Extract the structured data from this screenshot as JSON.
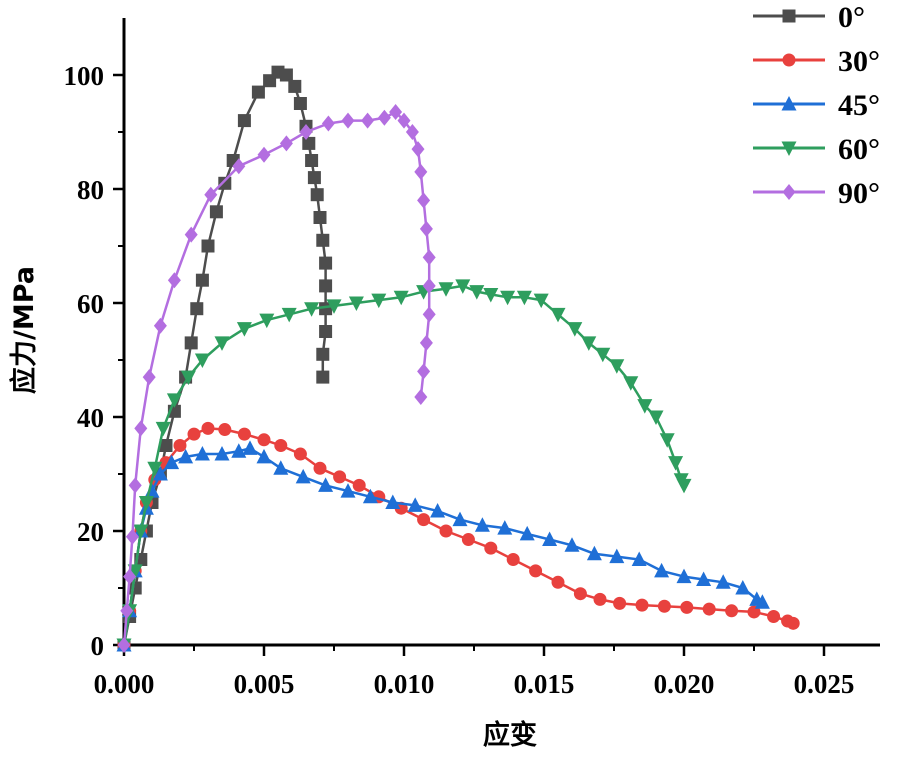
{
  "chart_data": {
    "type": "line",
    "title": "",
    "xlabel": "应变",
    "ylabel": "应力/MPa",
    "xlim": [
      0,
      0.027
    ],
    "ylim": [
      0,
      110
    ],
    "xticks": [
      0,
      0.005,
      0.01,
      0.015,
      0.02,
      0.025
    ],
    "xtick_labels": [
      "0.000",
      "0.005",
      "0.010",
      "0.015",
      "0.020",
      "0.025"
    ],
    "yticks": [
      0,
      20,
      40,
      60,
      80,
      100
    ],
    "ytick_labels": [
      "0",
      "20",
      "40",
      "60",
      "80",
      "100"
    ],
    "legend_position": "top-right",
    "series": [
      {
        "name": "0°",
        "color": "#4d4d4d",
        "marker": "square",
        "points": [
          [
            0,
            0
          ],
          [
            0.0002,
            5
          ],
          [
            0.0004,
            10
          ],
          [
            0.0006,
            15
          ],
          [
            0.0008,
            20
          ],
          [
            0.001,
            25
          ],
          [
            0.0013,
            30
          ],
          [
            0.0015,
            35
          ],
          [
            0.0018,
            41
          ],
          [
            0.0022,
            47
          ],
          [
            0.0024,
            53
          ],
          [
            0.0026,
            59
          ],
          [
            0.0028,
            64
          ],
          [
            0.003,
            70
          ],
          [
            0.0033,
            76
          ],
          [
            0.0036,
            81
          ],
          [
            0.0039,
            85
          ],
          [
            0.0043,
            92
          ],
          [
            0.0048,
            97
          ],
          [
            0.0052,
            99
          ],
          [
            0.0055,
            100.5
          ],
          [
            0.0058,
            100
          ],
          [
            0.0061,
            98
          ],
          [
            0.0063,
            95
          ],
          [
            0.0065,
            91
          ],
          [
            0.0066,
            88
          ],
          [
            0.0067,
            85
          ],
          [
            0.0068,
            82
          ],
          [
            0.0069,
            79
          ],
          [
            0.007,
            75
          ],
          [
            0.0071,
            71
          ],
          [
            0.0072,
            67
          ],
          [
            0.0072,
            63
          ],
          [
            0.0072,
            59
          ],
          [
            0.0072,
            55
          ],
          [
            0.0071,
            51
          ],
          [
            0.0071,
            47
          ]
        ]
      },
      {
        "name": "30°",
        "color": "#e8413e",
        "marker": "circle",
        "points": [
          [
            0,
            0
          ],
          [
            0.0002,
            6
          ],
          [
            0.0004,
            13
          ],
          [
            0.0006,
            20
          ],
          [
            0.0008,
            25
          ],
          [
            0.0011,
            29
          ],
          [
            0.0015,
            32
          ],
          [
            0.002,
            35
          ],
          [
            0.0025,
            37
          ],
          [
            0.003,
            38
          ],
          [
            0.0036,
            37.8
          ],
          [
            0.0043,
            37
          ],
          [
            0.005,
            36
          ],
          [
            0.0056,
            35
          ],
          [
            0.0063,
            33.5
          ],
          [
            0.007,
            31
          ],
          [
            0.0077,
            29.5
          ],
          [
            0.0084,
            28
          ],
          [
            0.0091,
            26
          ],
          [
            0.0099,
            24
          ],
          [
            0.0107,
            22
          ],
          [
            0.0115,
            20
          ],
          [
            0.0123,
            18.5
          ],
          [
            0.0131,
            17
          ],
          [
            0.0139,
            15
          ],
          [
            0.0147,
            13
          ],
          [
            0.0155,
            11
          ],
          [
            0.0163,
            9
          ],
          [
            0.017,
            8
          ],
          [
            0.0177,
            7.3
          ],
          [
            0.0185,
            7
          ],
          [
            0.0193,
            6.8
          ],
          [
            0.0201,
            6.6
          ],
          [
            0.0209,
            6.3
          ],
          [
            0.0217,
            6
          ],
          [
            0.0225,
            5.8
          ],
          [
            0.0232,
            5
          ],
          [
            0.0237,
            4.2
          ],
          [
            0.0239,
            3.8
          ]
        ]
      },
      {
        "name": "45°",
        "color": "#1f6fd6",
        "marker": "triangle-up",
        "points": [
          [
            0,
            0
          ],
          [
            0.0002,
            6
          ],
          [
            0.0004,
            13
          ],
          [
            0.0006,
            20
          ],
          [
            0.0008,
            24
          ],
          [
            0.001,
            27
          ],
          [
            0.0013,
            30
          ],
          [
            0.0017,
            32
          ],
          [
            0.0022,
            33
          ],
          [
            0.0028,
            33.5
          ],
          [
            0.0035,
            33.5
          ],
          [
            0.0041,
            34
          ],
          [
            0.0045,
            34.5
          ],
          [
            0.005,
            33
          ],
          [
            0.0056,
            31
          ],
          [
            0.0064,
            29.5
          ],
          [
            0.0072,
            28
          ],
          [
            0.008,
            27
          ],
          [
            0.0088,
            26
          ],
          [
            0.0096,
            25
          ],
          [
            0.0104,
            24.5
          ],
          [
            0.0112,
            23.5
          ],
          [
            0.012,
            22
          ],
          [
            0.0128,
            21
          ],
          [
            0.0136,
            20.5
          ],
          [
            0.0144,
            19.5
          ],
          [
            0.0152,
            18.5
          ],
          [
            0.016,
            17.5
          ],
          [
            0.0168,
            16
          ],
          [
            0.0176,
            15.5
          ],
          [
            0.0184,
            15
          ],
          [
            0.0192,
            13
          ],
          [
            0.02,
            12
          ],
          [
            0.0207,
            11.5
          ],
          [
            0.0214,
            11
          ],
          [
            0.0221,
            10
          ],
          [
            0.0226,
            8
          ],
          [
            0.0228,
            7.5
          ]
        ]
      },
      {
        "name": "60°",
        "color": "#2e9e5e",
        "marker": "triangle-down",
        "points": [
          [
            0,
            0
          ],
          [
            0.0002,
            6
          ],
          [
            0.0004,
            13
          ],
          [
            0.0006,
            20
          ],
          [
            0.0008,
            25
          ],
          [
            0.0011,
            31
          ],
          [
            0.0014,
            38
          ],
          [
            0.0018,
            43
          ],
          [
            0.0023,
            47
          ],
          [
            0.0028,
            50
          ],
          [
            0.0035,
            53
          ],
          [
            0.0043,
            55.5
          ],
          [
            0.0051,
            57
          ],
          [
            0.0059,
            58
          ],
          [
            0.0067,
            59
          ],
          [
            0.0075,
            59.5
          ],
          [
            0.0083,
            60
          ],
          [
            0.0091,
            60.5
          ],
          [
            0.0099,
            61
          ],
          [
            0.0107,
            62
          ],
          [
            0.0115,
            62.5
          ],
          [
            0.0121,
            63
          ],
          [
            0.0126,
            62
          ],
          [
            0.0131,
            61.5
          ],
          [
            0.0137,
            61
          ],
          [
            0.0143,
            61
          ],
          [
            0.0149,
            60.5
          ],
          [
            0.0155,
            58
          ],
          [
            0.0161,
            55.5
          ],
          [
            0.0166,
            53
          ],
          [
            0.0171,
            51
          ],
          [
            0.0176,
            49
          ],
          [
            0.0181,
            46
          ],
          [
            0.0186,
            42
          ],
          [
            0.019,
            40
          ],
          [
            0.0194,
            36
          ],
          [
            0.0197,
            32
          ],
          [
            0.0199,
            29
          ],
          [
            0.02,
            28
          ]
        ]
      },
      {
        "name": "90°",
        "color": "#b36ee0",
        "marker": "diamond",
        "points": [
          [
            0,
            0
          ],
          [
            0.0001,
            6
          ],
          [
            0.0002,
            12
          ],
          [
            0.0003,
            19
          ],
          [
            0.0004,
            28
          ],
          [
            0.0006,
            38
          ],
          [
            0.0009,
            47
          ],
          [
            0.0013,
            56
          ],
          [
            0.0018,
            64
          ],
          [
            0.0024,
            72
          ],
          [
            0.0031,
            79
          ],
          [
            0.0041,
            84
          ],
          [
            0.005,
            86
          ],
          [
            0.0058,
            88
          ],
          [
            0.0065,
            90
          ],
          [
            0.0073,
            91.5
          ],
          [
            0.008,
            92
          ],
          [
            0.0087,
            92
          ],
          [
            0.0093,
            92.5
          ],
          [
            0.0097,
            93.5
          ],
          [
            0.01,
            92
          ],
          [
            0.0103,
            90
          ],
          [
            0.0105,
            87
          ],
          [
            0.0106,
            83
          ],
          [
            0.0107,
            78
          ],
          [
            0.0108,
            73
          ],
          [
            0.0109,
            68
          ],
          [
            0.0109,
            63
          ],
          [
            0.0109,
            58
          ],
          [
            0.0108,
            53
          ],
          [
            0.0107,
            48
          ],
          [
            0.0106,
            43.5
          ]
        ]
      }
    ]
  }
}
